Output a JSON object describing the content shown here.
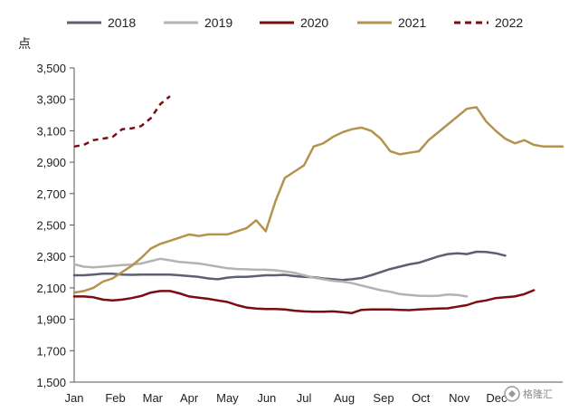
{
  "chart_data": {
    "type": "line",
    "title": "",
    "xlabel": "",
    "ylabel": "点",
    "ylim": [
      1500,
      3500
    ],
    "yticks": [
      1500,
      1700,
      1900,
      2100,
      2300,
      2500,
      2700,
      2900,
      3100,
      3300,
      3500
    ],
    "ytick_labels": [
      "1,500",
      "1,700",
      "1,900",
      "2,100",
      "2,300",
      "2,500",
      "2,700",
      "2,900",
      "3,100",
      "3,300",
      "3,500"
    ],
    "x_range": [
      0,
      51
    ],
    "x_unit": "week",
    "xtick_labels": [
      "Jan",
      "Feb",
      "Mar",
      "Apr",
      "May",
      "Jun",
      "Jul",
      "Aug",
      "Sep",
      "Oct",
      "Nov",
      "Dec"
    ],
    "xtick_positions": [
      0,
      4.3,
      8.2,
      12,
      16,
      20.1,
      24,
      28.2,
      32.3,
      36.2,
      40.2,
      44.1
    ],
    "grid": false,
    "legend": "top",
    "series": [
      {
        "name": "2018",
        "color": "#5b6072",
        "style": "solid",
        "x": [
          0,
          1,
          2,
          3,
          4,
          5,
          6,
          7,
          8,
          9,
          10,
          11,
          12,
          13,
          14,
          15,
          16,
          17,
          18,
          19,
          20,
          21,
          22,
          23,
          24,
          25,
          26,
          27,
          28,
          29,
          30,
          31,
          32,
          33,
          34,
          35,
          36,
          37,
          38,
          39,
          40,
          41,
          42,
          43,
          44,
          45
        ],
        "y": [
          2180,
          2180,
          2185,
          2190,
          2190,
          2185,
          2183,
          2185,
          2185,
          2185,
          2185,
          2180,
          2175,
          2170,
          2160,
          2155,
          2165,
          2170,
          2170,
          2175,
          2180,
          2180,
          2183,
          2175,
          2170,
          2168,
          2160,
          2155,
          2150,
          2155,
          2163,
          2180,
          2200,
          2220,
          2235,
          2250,
          2260,
          2280,
          2300,
          2315,
          2320,
          2315,
          2330,
          2328,
          2320,
          2305
        ]
      },
      {
        "name": "2019",
        "color": "#b3b3b3",
        "style": "solid",
        "x": [
          0,
          1,
          2,
          3,
          4,
          5,
          6,
          7,
          8,
          9,
          10,
          11,
          12,
          13,
          14,
          15,
          16,
          17,
          18,
          19,
          20,
          21,
          22,
          23,
          24,
          25,
          26,
          27,
          28,
          29,
          30,
          31,
          32,
          33,
          34,
          35,
          36,
          37,
          38,
          39,
          40,
          41
        ],
        "y": [
          2250,
          2235,
          2230,
          2235,
          2240,
          2245,
          2248,
          2255,
          2270,
          2285,
          2275,
          2265,
          2260,
          2255,
          2245,
          2235,
          2225,
          2220,
          2218,
          2215,
          2215,
          2212,
          2205,
          2195,
          2180,
          2165,
          2155,
          2145,
          2140,
          2130,
          2115,
          2100,
          2085,
          2075,
          2060,
          2055,
          2050,
          2048,
          2050,
          2058,
          2055,
          2045
        ]
      },
      {
        "name": "2020",
        "color": "#7a0d12",
        "style": "solid",
        "x": [
          0,
          1,
          2,
          3,
          4,
          5,
          6,
          7,
          8,
          9,
          10,
          11,
          12,
          13,
          14,
          15,
          16,
          17,
          18,
          19,
          20,
          21,
          22,
          23,
          24,
          25,
          26,
          27,
          28,
          29,
          30,
          31,
          32,
          33,
          34,
          35,
          36,
          37,
          38,
          39,
          40,
          41,
          42,
          43,
          44,
          45,
          46,
          47,
          48
        ],
        "y": [
          2045,
          2045,
          2040,
          2025,
          2020,
          2025,
          2035,
          2048,
          2070,
          2080,
          2080,
          2065,
          2045,
          2038,
          2030,
          2020,
          2010,
          1990,
          1975,
          1968,
          1965,
          1965,
          1962,
          1955,
          1950,
          1948,
          1948,
          1950,
          1945,
          1940,
          1960,
          1963,
          1962,
          1963,
          1960,
          1958,
          1963,
          1965,
          1968,
          1970,
          1980,
          1990,
          2010,
          2020,
          2035,
          2040,
          2045,
          2060,
          2085
        ]
      },
      {
        "name": "2021",
        "color": "#b5934f",
        "style": "solid",
        "x": [
          0,
          1,
          2,
          3,
          4,
          5,
          6,
          7,
          8,
          9,
          10,
          11,
          12,
          13,
          14,
          15,
          16,
          17,
          18,
          19,
          20,
          21,
          22,
          23,
          24,
          25,
          26,
          27,
          28,
          29,
          30,
          31,
          32,
          33,
          34,
          35,
          36,
          37,
          38,
          39,
          40,
          41,
          42,
          43,
          44,
          45,
          46,
          47,
          48,
          49,
          50,
          51
        ],
        "y": [
          2070,
          2080,
          2100,
          2140,
          2160,
          2200,
          2240,
          2290,
          2350,
          2380,
          2400,
          2420,
          2440,
          2430,
          2440,
          2440,
          2440,
          2460,
          2480,
          2530,
          2460,
          2650,
          2800,
          2840,
          2880,
          3000,
          3020,
          3060,
          3090,
          3110,
          3120,
          3100,
          3050,
          2970,
          2950,
          2960,
          2970,
          3040,
          3090,
          3140,
          3190,
          3240,
          3250,
          3160,
          3100,
          3050,
          3020,
          3040,
          3010,
          3000,
          3000,
          3000
        ]
      },
      {
        "name": "2022",
        "color": "#7a0d12",
        "style": "dashed",
        "x": [
          0,
          1,
          2,
          3,
          4,
          5,
          6,
          7,
          8,
          9,
          10
        ],
        "y": [
          3000,
          3010,
          3040,
          3050,
          3060,
          3110,
          3115,
          3130,
          3180,
          3270,
          3320
        ]
      }
    ]
  },
  "watermark": "格隆汇"
}
